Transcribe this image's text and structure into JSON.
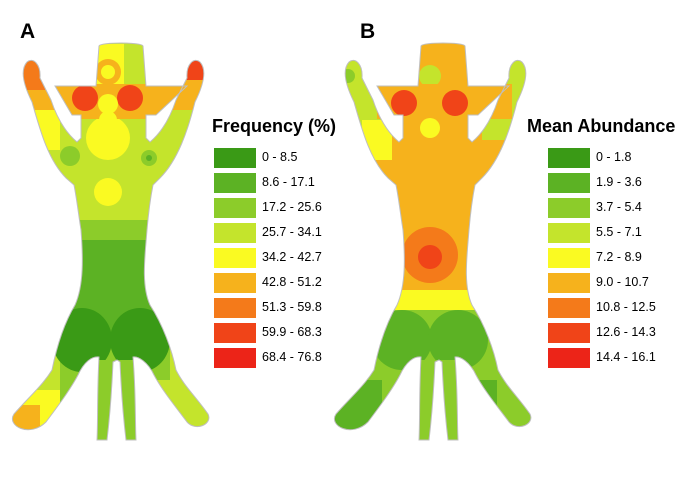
{
  "panels": [
    {
      "letter": "A",
      "legend_title": "Frequency (%)",
      "legend_items": [
        {
          "label": "0 - 8.5",
          "color": "#3a9a16"
        },
        {
          "label": "8.6 - 17.1",
          "color": "#5cb224"
        },
        {
          "label": "17.2 - 25.6",
          "color": "#8ccc2a"
        },
        {
          "label": "25.7 - 34.1",
          "color": "#c4e42c"
        },
        {
          "label": "34.2 - 42.7",
          "color": "#fafa22"
        },
        {
          "label": "42.8 - 51.2",
          "color": "#f6b21c"
        },
        {
          "label": "51.3 - 59.8",
          "color": "#f47a1a"
        },
        {
          "label": "59.9 - 68.3",
          "color": "#f04418"
        },
        {
          "label": "68.4 - 76.8",
          "color": "#ec2418"
        }
      ]
    },
    {
      "letter": "B",
      "legend_title": "Mean Abundance",
      "legend_items": [
        {
          "label": "0 - 1.8",
          "color": "#3a9a16"
        },
        {
          "label": "1.9 - 3.6",
          "color": "#5cb224"
        },
        {
          "label": "3.7 - 5.4",
          "color": "#8ccc2a"
        },
        {
          "label": "5.5 - 7.1",
          "color": "#c4e42c"
        },
        {
          "label": "7.2 - 8.9",
          "color": "#fafa22"
        },
        {
          "label": "9.0 - 10.7",
          "color": "#f6b21c"
        },
        {
          "label": "10.8 - 12.5",
          "color": "#f47a1a"
        },
        {
          "label": "12.6 - 14.3",
          "color": "#f04418"
        },
        {
          "label": "14.4 - 16.1",
          "color": "#ec2418"
        }
      ]
    }
  ]
}
